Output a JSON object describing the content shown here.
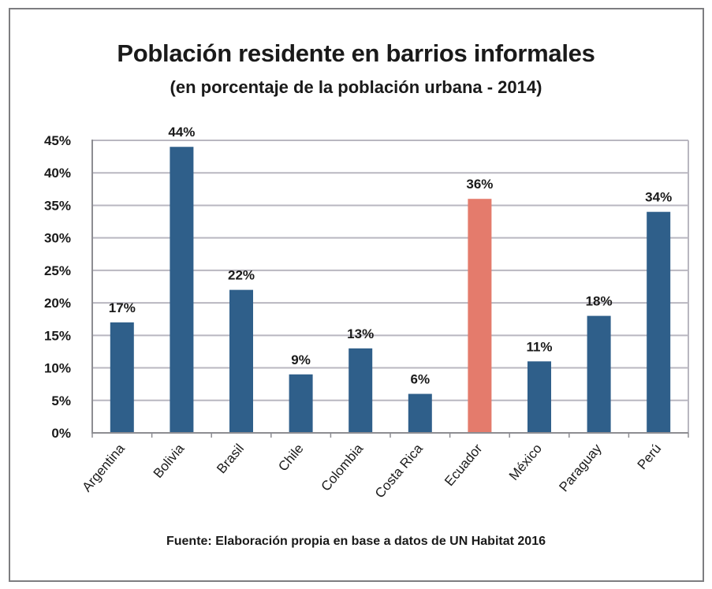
{
  "chart_data": {
    "type": "bar",
    "title": "Población residente en barrios informales",
    "subtitle": "(en porcentaje de la población urbana - 2014)",
    "xlabel": "",
    "ylabel": "",
    "ylim": [
      0,
      45
    ],
    "yticks": [
      0,
      5,
      10,
      15,
      20,
      25,
      30,
      35,
      40,
      45
    ],
    "ytick_labels": [
      "0%",
      "5%",
      "10%",
      "15%",
      "20%",
      "25%",
      "30%",
      "35%",
      "40%",
      "45%"
    ],
    "grid": true,
    "categories": [
      "Argentina",
      "Bolivia",
      "Brasil",
      "Chile",
      "Colombia",
      "Costa Rica",
      "Ecuador",
      "México",
      "Paraguay",
      "Perú"
    ],
    "values": [
      17,
      44,
      22,
      9,
      13,
      6,
      36,
      11,
      18,
      34
    ],
    "data_labels": [
      "17%",
      "44%",
      "22%",
      "9%",
      "13%",
      "6%",
      "36%",
      "11%",
      "18%",
      "34%"
    ],
    "highlight_category": "Ecuador",
    "colors": {
      "default": "#2f5f8a",
      "highlight": "#e47b6c",
      "grid": "#b9b7c0",
      "axis": "#8d8d92"
    },
    "source": "Fuente: Elaboración propia en base a datos de UN Habitat 2016"
  }
}
